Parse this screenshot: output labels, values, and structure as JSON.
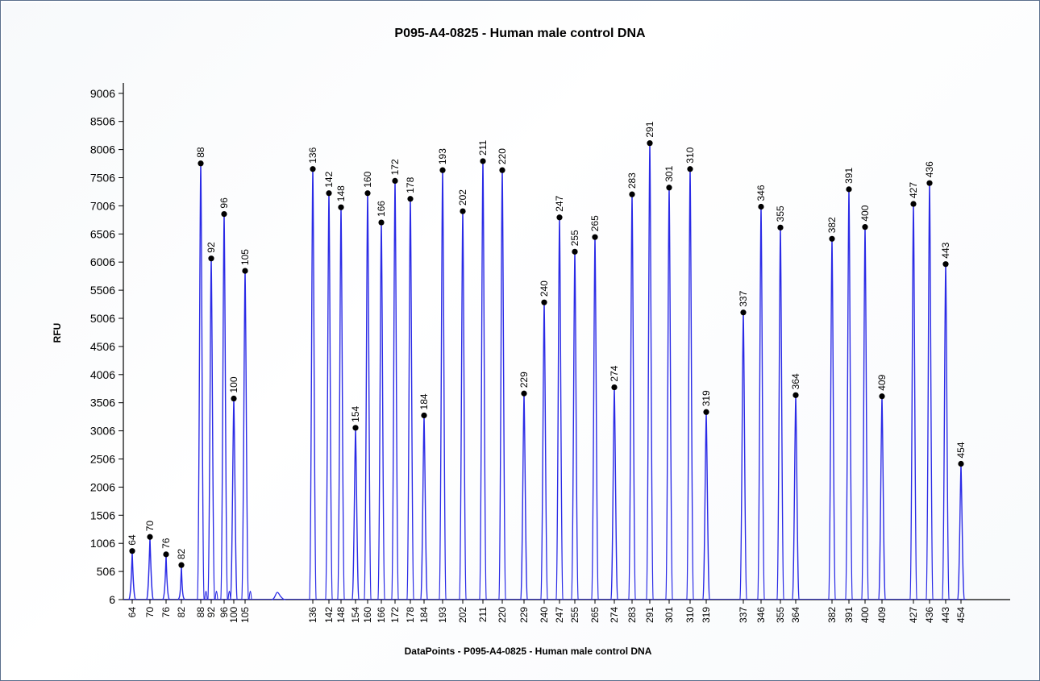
{
  "chart_data": {
    "type": "line",
    "title": "P095-A4-0825 - Human male control DNA",
    "xlabel": "DataPoints - P095-A4-0825 - Human male control DNA",
    "ylabel": "RFU",
    "ylim": [
      6,
      9506
    ],
    "y_ticks": [
      6,
      506,
      1006,
      1506,
      2006,
      2506,
      3006,
      3506,
      4006,
      4506,
      5006,
      5506,
      6006,
      6506,
      7006,
      7506,
      8006,
      8506,
      9006
    ],
    "grid": false,
    "line_color": "#2a2ae6",
    "marker_color": "#000000",
    "series": [
      {
        "peaks": [
          {
            "label": "64",
            "value": 870
          },
          {
            "label": "70",
            "value": 1120
          },
          {
            "label": "76",
            "value": 810
          },
          {
            "label": "82",
            "value": 620
          },
          {
            "label": "88",
            "value": 7760
          },
          {
            "label": "92",
            "value": 6070
          },
          {
            "label": "96",
            "value": 6860
          },
          {
            "label": "100",
            "value": 3580
          },
          {
            "label": "105",
            "value": 5850
          },
          {
            "label": "136",
            "value": 7660
          },
          {
            "label": "142",
            "value": 7230
          },
          {
            "label": "148",
            "value": 6980
          },
          {
            "label": "154",
            "value": 3060
          },
          {
            "label": "160",
            "value": 7230
          },
          {
            "label": "166",
            "value": 6710
          },
          {
            "label": "172",
            "value": 7450
          },
          {
            "label": "178",
            "value": 7130
          },
          {
            "label": "184",
            "value": 3280
          },
          {
            "label": "193",
            "value": 7640
          },
          {
            "label": "202",
            "value": 6910
          },
          {
            "label": "211",
            "value": 7800
          },
          {
            "label": "220",
            "value": 7640
          },
          {
            "label": "229",
            "value": 3670
          },
          {
            "label": "240",
            "value": 5290
          },
          {
            "label": "247",
            "value": 6800
          },
          {
            "label": "255",
            "value": 6190
          },
          {
            "label": "265",
            "value": 6450
          },
          {
            "label": "274",
            "value": 3780
          },
          {
            "label": "283",
            "value": 7210
          },
          {
            "label": "291",
            "value": 8120
          },
          {
            "label": "301",
            "value": 7330
          },
          {
            "label": "310",
            "value": 7660
          },
          {
            "label": "319",
            "value": 3340
          },
          {
            "label": "337",
            "value": 5110
          },
          {
            "label": "346",
            "value": 6990
          },
          {
            "label": "355",
            "value": 6620
          },
          {
            "label": "364",
            "value": 3640
          },
          {
            "label": "382",
            "value": 6420
          },
          {
            "label": "391",
            "value": 7300
          },
          {
            "label": "400",
            "value": 6630
          },
          {
            "label": "409",
            "value": 3620
          },
          {
            "label": "427",
            "value": 7040
          },
          {
            "label": "436",
            "value": 7410
          },
          {
            "label": "443",
            "value": 5970
          },
          {
            "label": "454",
            "value": 2420
          }
        ]
      }
    ]
  }
}
